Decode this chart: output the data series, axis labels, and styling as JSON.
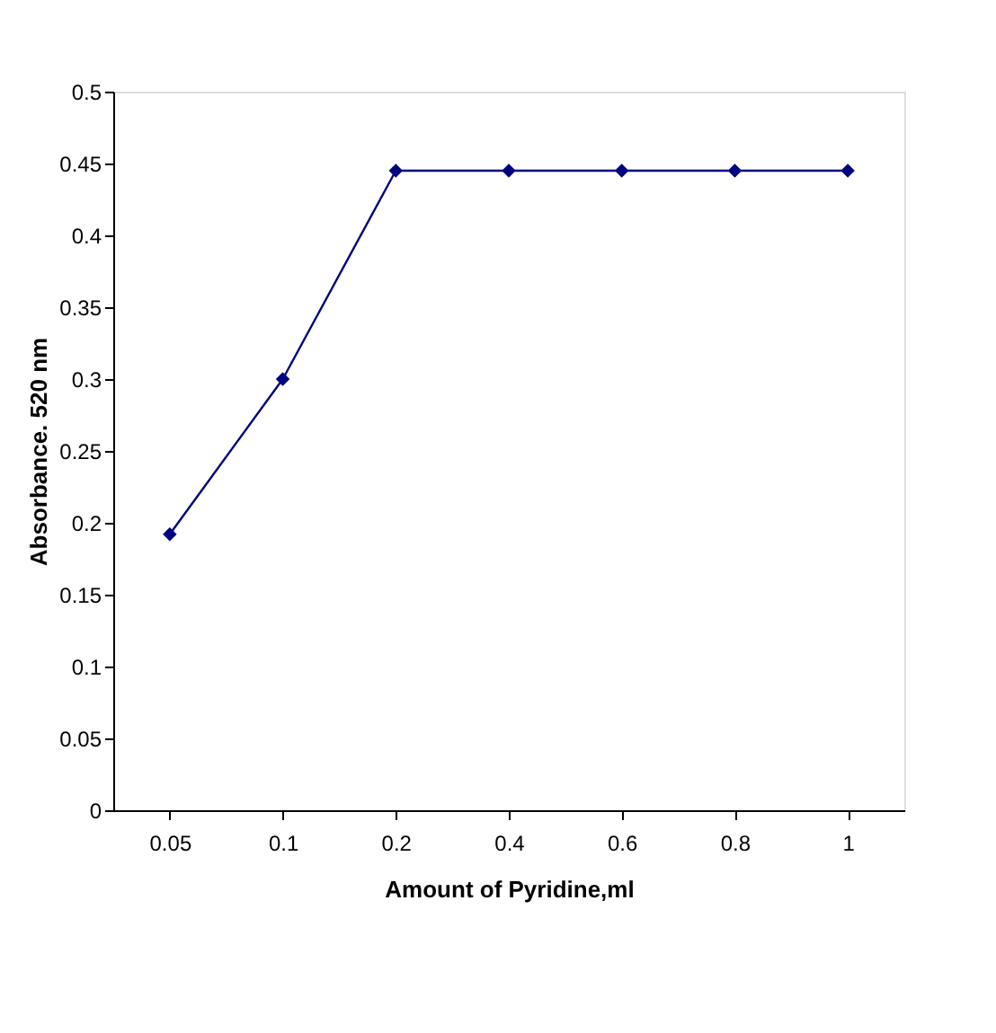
{
  "chart_data": {
    "type": "line",
    "xlabel": "Amount of Pyridine,ml",
    "ylabel": "Absorbance. 520 nm",
    "categories": [
      "0.05",
      "0.1",
      "0.2",
      "0.4",
      "0.6",
      "0.8",
      "1"
    ],
    "series": [
      {
        "color": "#000080",
        "values": [
          0.192,
          0.3,
          0.445,
          0.445,
          0.445,
          0.445,
          0.445
        ]
      }
    ],
    "ylim": [
      0,
      0.5
    ],
    "yticks": [
      0,
      0.05,
      0.1,
      0.15,
      0.2,
      0.25,
      0.3,
      0.35,
      0.4,
      0.45,
      0.5
    ],
    "grid": false,
    "marker": "diamond",
    "line_style": "solid"
  }
}
